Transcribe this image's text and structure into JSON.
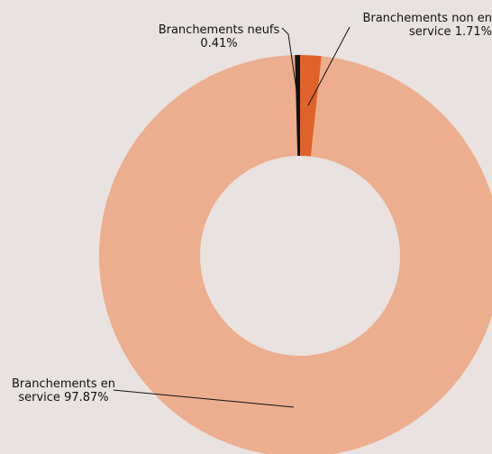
{
  "chart_data": {
    "type": "donut",
    "categories": [
      "Branchements non en service",
      "Branchements en service",
      "Branchements neufs"
    ],
    "values": [
      1.71,
      97.87,
      0.41
    ],
    "value_labels": [
      "1.71%",
      "97.87%",
      "0.41%"
    ],
    "colors": [
      "#e0622a",
      "#ecae8f",
      "#111111"
    ]
  }
}
